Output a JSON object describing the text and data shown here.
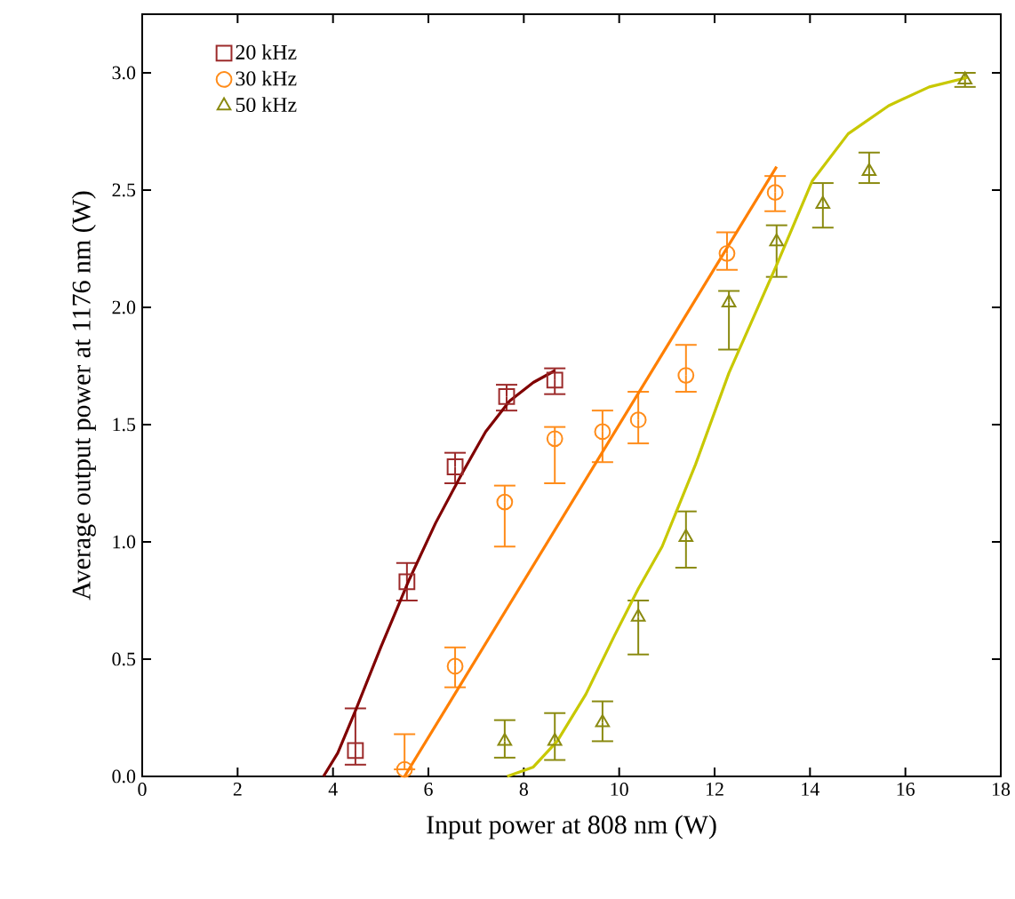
{
  "chart_data": {
    "type": "scatter",
    "xlabel": "Input power at 808 nm (W)",
    "ylabel": "Average output power at 1176 nm (W)",
    "xlim": [
      0,
      18
    ],
    "ylim": [
      0,
      3.25
    ],
    "xticks": [
      0,
      2,
      4,
      6,
      8,
      10,
      12,
      14,
      16,
      18
    ],
    "yticks": [
      {
        "value": 0,
        "label": "0.0"
      },
      {
        "value": 0.5,
        "label": "0.5"
      },
      {
        "value": 1,
        "label": "1.0"
      },
      {
        "value": 1.5,
        "label": "1.5"
      },
      {
        "value": 2,
        "label": "2.0"
      },
      {
        "value": 2.5,
        "label": "2.5"
      },
      {
        "value": 3,
        "label": "3.0"
      }
    ],
    "grid": false,
    "legend": "top left",
    "series": [
      {
        "name": "20 kHz",
        "marker": "square",
        "color": "#9c2a2a",
        "x": [
          4.47,
          5.55,
          6.56,
          7.64,
          8.65
        ],
        "values": [
          0.11,
          0.83,
          1.32,
          1.62,
          1.69
        ],
        "errors": [
          [
            0.05,
            0.29
          ],
          [
            0.75,
            0.91
          ],
          [
            1.25,
            1.38
          ],
          [
            1.56,
            1.67
          ],
          [
            1.63,
            1.74
          ]
        ]
      },
      {
        "name": "30 kHz",
        "marker": "circle",
        "color": "#ff8c1a",
        "x": [
          5.5,
          6.56,
          7.6,
          8.65,
          9.65,
          10.4,
          11.4,
          12.26,
          13.27
        ],
        "values": [
          0.03,
          0.47,
          1.17,
          1.44,
          1.47,
          1.52,
          1.71,
          2.23,
          2.49
        ],
        "errors": [
          [
            0.03,
            0.18
          ],
          [
            0.38,
            0.55
          ],
          [
            0.98,
            1.24
          ],
          [
            1.25,
            1.49
          ],
          [
            1.34,
            1.56
          ],
          [
            1.42,
            1.64
          ],
          [
            1.64,
            1.84
          ],
          [
            2.16,
            2.32
          ],
          [
            2.41,
            2.56
          ]
        ]
      },
      {
        "name": "50 kHz",
        "marker": "triangle",
        "color": "#8a8a10",
        "x": [
          7.6,
          8.65,
          9.65,
          10.4,
          11.4,
          12.3,
          13.3,
          14.27,
          15.24,
          17.25
        ],
        "values": [
          0.15,
          0.15,
          0.23,
          0.68,
          1.02,
          2.02,
          2.28,
          2.44,
          2.58,
          2.97
        ],
        "errors": [
          [
            0.08,
            0.24
          ],
          [
            0.07,
            0.27
          ],
          [
            0.15,
            0.32
          ],
          [
            0.52,
            0.75
          ],
          [
            0.89,
            1.13
          ],
          [
            1.82,
            2.07
          ],
          [
            2.13,
            2.35
          ],
          [
            2.34,
            2.53
          ],
          [
            2.53,
            2.66
          ],
          [
            2.94,
            3.0
          ]
        ]
      },
      {
        "type": "line",
        "color": "#800000",
        "line_style": "solid",
        "x": [
          3.8,
          4.1,
          4.47,
          5.0,
          5.6,
          6.15,
          6.7,
          7.2,
          7.7,
          8.2,
          8.65
        ],
        "values": [
          0,
          0.1,
          0.28,
          0.55,
          0.84,
          1.08,
          1.29,
          1.47,
          1.6,
          1.68,
          1.73
        ]
      },
      {
        "type": "line",
        "color": "#ff7f00",
        "line_style": "solid",
        "x": [
          5.5,
          13.3
        ],
        "values": [
          0,
          2.6
        ]
      },
      {
        "type": "line",
        "color": "#c8c800",
        "line_style": "solid",
        "x": [
          7.65,
          8.2,
          8.7,
          9.3,
          9.9,
          10.4,
          10.9,
          11.6,
          12.3,
          13.3,
          14.05,
          14.8,
          15.65,
          16.5,
          17.3
        ],
        "values": [
          0,
          0.04,
          0.15,
          0.35,
          0.6,
          0.8,
          0.98,
          1.33,
          1.72,
          2.18,
          2.54,
          2.74,
          2.86,
          2.94,
          2.98
        ]
      }
    ]
  }
}
